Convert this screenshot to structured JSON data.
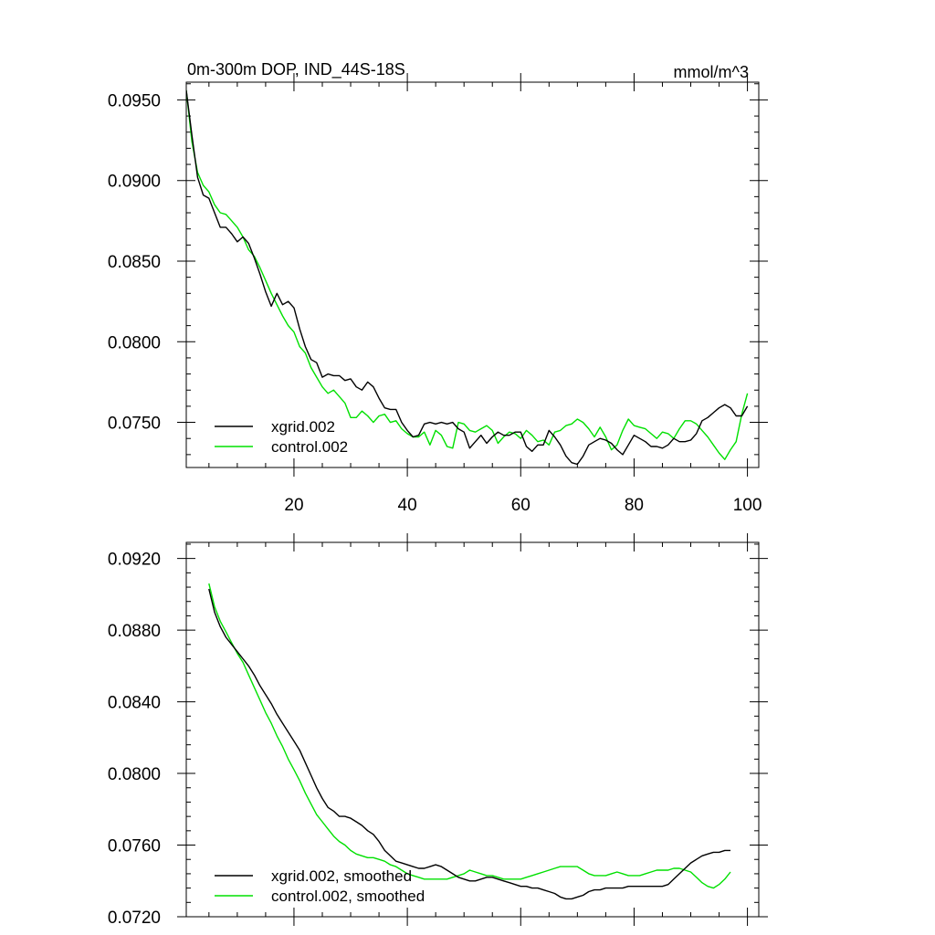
{
  "figure": {
    "title_left": "0m-300m DOP, IND_44S-18S",
    "title_right": "mmol/m^3"
  },
  "chart_data": [
    {
      "type": "line",
      "title": "0m-300m DOP, IND_44S-18S",
      "units": "mmol/m^3",
      "xlim": [
        1,
        102
      ],
      "ylim": [
        0.0722,
        0.0961
      ],
      "xticks": [
        20,
        40,
        60,
        80,
        100
      ],
      "xtick_labels": [
        "20",
        "40",
        "60",
        "80",
        "100"
      ],
      "yticks": [
        0.075,
        0.08,
        0.085,
        0.09,
        0.095
      ],
      "ytick_labels": [
        "0.0750",
        "0.0800",
        "0.0850",
        "0.0900",
        "0.0950"
      ],
      "legend_position": "bottom-left",
      "grid": false,
      "x": [
        1,
        2,
        3,
        4,
        5,
        6,
        7,
        8,
        9,
        10,
        11,
        12,
        13,
        14,
        15,
        16,
        17,
        18,
        19,
        20,
        21,
        22,
        23,
        24,
        25,
        26,
        27,
        28,
        29,
        30,
        31,
        32,
        33,
        34,
        35,
        36,
        37,
        38,
        39,
        40,
        41,
        42,
        43,
        44,
        45,
        46,
        47,
        48,
        49,
        50,
        51,
        52,
        53,
        54,
        55,
        56,
        57,
        58,
        59,
        60,
        61,
        62,
        63,
        64,
        65,
        66,
        67,
        68,
        69,
        70,
        71,
        72,
        73,
        74,
        75,
        76,
        77,
        78,
        79,
        80,
        81,
        82,
        83,
        84,
        85,
        86,
        87,
        88,
        89,
        90,
        91,
        92,
        93,
        94,
        95,
        96,
        97,
        98,
        99,
        100
      ],
      "series": [
        {
          "name": "xgrid.002",
          "color": "#000000",
          "values": [
            0.0956,
            0.0928,
            0.0902,
            0.0891,
            0.0889,
            0.088,
            0.0871,
            0.0871,
            0.0867,
            0.0862,
            0.0865,
            0.0861,
            0.0852,
            0.0842,
            0.0831,
            0.0822,
            0.083,
            0.0823,
            0.0825,
            0.0821,
            0.0808,
            0.0797,
            0.0789,
            0.0787,
            0.0778,
            0.078,
            0.0779,
            0.0779,
            0.0776,
            0.0777,
            0.0772,
            0.077,
            0.0775,
            0.0772,
            0.0765,
            0.0759,
            0.0758,
            0.0758,
            0.075,
            0.0745,
            0.0741,
            0.0742,
            0.0749,
            0.075,
            0.0749,
            0.075,
            0.0749,
            0.075,
            0.0746,
            0.0744,
            0.0734,
            0.0738,
            0.0742,
            0.0737,
            0.0741,
            0.0744,
            0.0742,
            0.0742,
            0.0744,
            0.0744,
            0.0735,
            0.0732,
            0.0736,
            0.0736,
            0.0745,
            0.0741,
            0.0736,
            0.0729,
            0.0725,
            0.0724,
            0.0729,
            0.0736,
            0.0738,
            0.074,
            0.0739,
            0.0737,
            0.0733,
            0.073,
            0.0736,
            0.0742,
            0.074,
            0.0738,
            0.0735,
            0.0735,
            0.0734,
            0.0736,
            0.074,
            0.0738,
            0.0738,
            0.0739,
            0.0743,
            0.0751,
            0.0753,
            0.0756,
            0.0759,
            0.0761,
            0.0759,
            0.0754,
            0.0754,
            0.076
          ]
        },
        {
          "name": "control.002",
          "color": "#00e000",
          "values": [
            0.0956,
            0.0924,
            0.0905,
            0.0897,
            0.0893,
            0.0885,
            0.088,
            0.0879,
            0.0875,
            0.0871,
            0.0865,
            0.0857,
            0.0853,
            0.0846,
            0.0838,
            0.083,
            0.0823,
            0.0816,
            0.081,
            0.0806,
            0.0797,
            0.0793,
            0.0784,
            0.0778,
            0.0772,
            0.0768,
            0.077,
            0.0766,
            0.0762,
            0.0753,
            0.0753,
            0.0757,
            0.0754,
            0.075,
            0.0754,
            0.0755,
            0.075,
            0.0751,
            0.0746,
            0.0743,
            0.0741,
            0.0741,
            0.0744,
            0.0736,
            0.0745,
            0.0742,
            0.0735,
            0.0734,
            0.075,
            0.0749,
            0.0745,
            0.0744,
            0.0746,
            0.0748,
            0.0745,
            0.0737,
            0.0741,
            0.0744,
            0.0743,
            0.074,
            0.0745,
            0.0742,
            0.0738,
            0.0739,
            0.0736,
            0.0744,
            0.0745,
            0.0748,
            0.0749,
            0.0752,
            0.075,
            0.0746,
            0.0741,
            0.0747,
            0.0741,
            0.0733,
            0.0736,
            0.0745,
            0.0752,
            0.0748,
            0.0747,
            0.0746,
            0.0743,
            0.074,
            0.0744,
            0.0743,
            0.074,
            0.0746,
            0.0751,
            0.0751,
            0.0749,
            0.0745,
            0.0741,
            0.0736,
            0.0731,
            0.0727,
            0.0733,
            0.0738,
            0.0755,
            0.0768
          ]
        }
      ]
    },
    {
      "type": "line",
      "xlim": [
        1,
        102
      ],
      "ylim": [
        0.072,
        0.0929
      ],
      "xticks": [
        20,
        40,
        60,
        80,
        100
      ],
      "xtick_labels": [],
      "yticks": [
        0.072,
        0.076,
        0.08,
        0.084,
        0.088,
        0.092
      ],
      "ytick_labels": [
        "0.0720",
        "0.0760",
        "0.0800",
        "0.0840",
        "0.0880",
        "0.0920"
      ],
      "legend_position": "bottom-left",
      "grid": false,
      "x": [
        5,
        6,
        7,
        8,
        9,
        10,
        11,
        12,
        13,
        14,
        15,
        16,
        17,
        18,
        19,
        20,
        21,
        22,
        23,
        24,
        25,
        26,
        27,
        28,
        29,
        30,
        31,
        32,
        33,
        34,
        35,
        36,
        37,
        38,
        39,
        40,
        41,
        42,
        43,
        44,
        45,
        46,
        47,
        48,
        49,
        50,
        51,
        52,
        53,
        54,
        55,
        56,
        57,
        58,
        59,
        60,
        61,
        62,
        63,
        64,
        65,
        66,
        67,
        68,
        69,
        70,
        71,
        72,
        73,
        74,
        75,
        76,
        77,
        78,
        79,
        80,
        81,
        82,
        83,
        84,
        85,
        86,
        87,
        88,
        89,
        90,
        91,
        92,
        93,
        94,
        95,
        96,
        97
      ],
      "series": [
        {
          "name": "xgrid.002, smoothed",
          "color": "#000000",
          "values": [
            0.0903,
            0.089,
            0.0882,
            0.0876,
            0.0872,
            0.0868,
            0.0864,
            0.086,
            0.0855,
            0.0849,
            0.0844,
            0.0839,
            0.0833,
            0.0828,
            0.0823,
            0.0818,
            0.0813,
            0.0806,
            0.0799,
            0.0792,
            0.0786,
            0.0781,
            0.0779,
            0.0776,
            0.0776,
            0.0775,
            0.0773,
            0.0771,
            0.0768,
            0.0766,
            0.0762,
            0.0757,
            0.0754,
            0.0751,
            0.075,
            0.0749,
            0.0748,
            0.0747,
            0.0747,
            0.0748,
            0.0749,
            0.0748,
            0.0746,
            0.0744,
            0.0742,
            0.0741,
            0.074,
            0.074,
            0.0741,
            0.0742,
            0.0742,
            0.0741,
            0.074,
            0.0739,
            0.0738,
            0.0737,
            0.0737,
            0.0736,
            0.0736,
            0.0735,
            0.0734,
            0.0733,
            0.0731,
            0.073,
            0.073,
            0.0731,
            0.0732,
            0.0734,
            0.0735,
            0.0735,
            0.0736,
            0.0736,
            0.0736,
            0.0736,
            0.0737,
            0.0737,
            0.0737,
            0.0737,
            0.0737,
            0.0737,
            0.0737,
            0.0738,
            0.0741,
            0.0744,
            0.0747,
            0.075,
            0.0752,
            0.0754,
            0.0755,
            0.0756,
            0.0756,
            0.0757,
            0.0757
          ]
        },
        {
          "name": "control.002, smoothed",
          "color": "#00e000",
          "values": [
            0.0906,
            0.0893,
            0.0885,
            0.0879,
            0.0873,
            0.0867,
            0.0862,
            0.0855,
            0.0848,
            0.0841,
            0.0834,
            0.0828,
            0.0821,
            0.0815,
            0.0808,
            0.0802,
            0.0796,
            0.0789,
            0.0783,
            0.0777,
            0.0773,
            0.0769,
            0.0765,
            0.0762,
            0.076,
            0.0757,
            0.0755,
            0.0754,
            0.0753,
            0.0753,
            0.0752,
            0.0751,
            0.0749,
            0.0748,
            0.0746,
            0.0744,
            0.0743,
            0.0742,
            0.0741,
            0.0741,
            0.0741,
            0.0741,
            0.0741,
            0.0742,
            0.0743,
            0.0744,
            0.0746,
            0.0745,
            0.0744,
            0.0743,
            0.0743,
            0.0742,
            0.0741,
            0.0741,
            0.0741,
            0.0741,
            0.0742,
            0.0743,
            0.0744,
            0.0745,
            0.0746,
            0.0747,
            0.0748,
            0.0748,
            0.0748,
            0.0748,
            0.0746,
            0.0744,
            0.0743,
            0.0743,
            0.0743,
            0.0744,
            0.0745,
            0.0744,
            0.0743,
            0.0743,
            0.0743,
            0.0744,
            0.0745,
            0.0746,
            0.0746,
            0.0746,
            0.0747,
            0.0747,
            0.0746,
            0.0745,
            0.0742,
            0.0739,
            0.0737,
            0.0736,
            0.0738,
            0.0741,
            0.0745
          ]
        }
      ]
    }
  ]
}
